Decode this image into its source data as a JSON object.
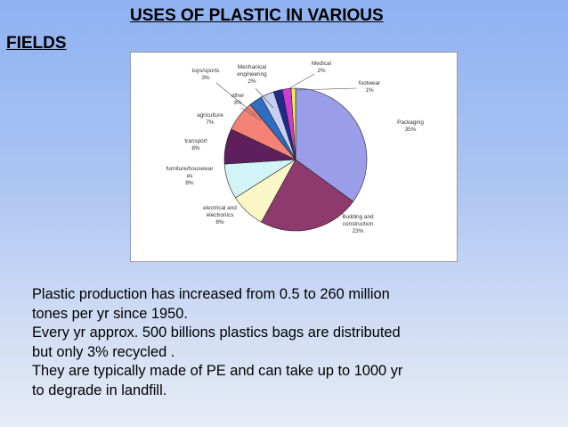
{
  "title": {
    "line1": "USES OF PLASTIC  IN VARIOUS",
    "line2": "FIELDS"
  },
  "chart_data": {
    "type": "pie",
    "slices": [
      {
        "label": "Packaging",
        "value": 35,
        "value_label": "35%",
        "color": "#9a9ee8"
      },
      {
        "label": "Building and construction",
        "value": 23,
        "value_label": "23%",
        "color": "#8e3a6f"
      },
      {
        "label": "electrical and electronics",
        "value": 8,
        "value_label": "8%",
        "color": "#fbf6c6"
      },
      {
        "label": "furniture/housewares",
        "value": 8,
        "value_label": "8%",
        "color": "#d2f4f7"
      },
      {
        "label": "transport",
        "value": 8,
        "value_label": "8%",
        "color": "#5f1f5c"
      },
      {
        "label": "agriculture",
        "value": 7,
        "value_label": "7%",
        "color": "#f48277"
      },
      {
        "label": "other",
        "value": 3,
        "value_label": "3%",
        "color": "#2e6dc1"
      },
      {
        "label": "toys/sports",
        "value": 3,
        "value_label": "3%",
        "color": "#c7cff7"
      },
      {
        "label": "Mechanical engineering",
        "value": 2,
        "value_label": "2%",
        "color": "#1f2a8a"
      },
      {
        "label": "Medical",
        "value": 2,
        "value_label": "2%",
        "color": "#cf3ad0"
      },
      {
        "label": "footwear",
        "value": 1,
        "value_label": "1%",
        "color": "#f6f04c"
      }
    ],
    "label_lines": [
      [
        "Packaging",
        "35%"
      ],
      [
        "Building and",
        "construction",
        "23%"
      ],
      [
        "electrical and",
        "electronics",
        "8%"
      ],
      [
        "furniture/housewar",
        "es",
        "8%"
      ],
      [
        "transport",
        "8%"
      ],
      [
        "agriculture",
        "7%"
      ],
      [
        "other",
        "3%"
      ],
      [
        "toys/sports",
        "3%"
      ],
      [
        "Mechanical",
        "engineering",
        "2%"
      ],
      [
        "Medical",
        "2%"
      ],
      [
        "footwear",
        "1%"
      ]
    ]
  },
  "body": {
    "line1": "Plastic production has increased from 0.5 to 260 million",
    "line2": "tones per yr since 1950.",
    "line3": "Every yr approx. 500 billions plastics bags  are distributed",
    "line4": "but only 3% recycled .",
    "line5": "They are typically made of PE and can take up to 1000 yr",
    "line6": "to degrade  in landfill."
  }
}
